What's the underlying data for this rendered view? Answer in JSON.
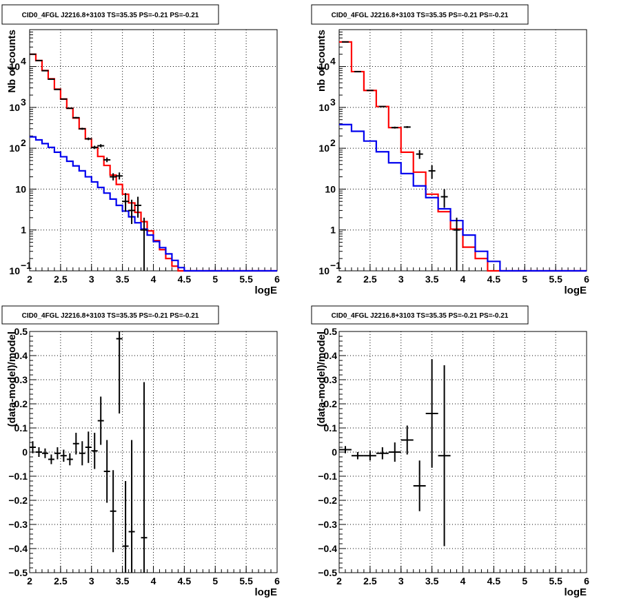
{
  "chart_data": [
    {
      "type": "line",
      "title": "CID0_4FGL J2216.8+3103 TS=35.35 PS=-0.21 PS=-0.21",
      "xlabel": "logE",
      "ylabel": "Nb of counts",
      "xlim": [
        2,
        6
      ],
      "ylim": [
        0.1,
        80000
      ],
      "yscale": "log",
      "grid": true,
      "x_ticks": [
        "2",
        "2.5",
        "3",
        "3.5",
        "4",
        "4.5",
        "5",
        "5.5",
        "6"
      ],
      "y_ticks": [
        {
          "value": 0.1,
          "base": "10",
          "exp": "−1"
        },
        {
          "value": 1,
          "base": "1",
          "exp": ""
        },
        {
          "value": 10,
          "base": "10",
          "exp": ""
        },
        {
          "value": 100,
          "base": "10",
          "exp": "2"
        },
        {
          "value": 1000,
          "base": "10",
          "exp": "3"
        },
        {
          "value": 10000,
          "base": "10",
          "exp": "4"
        }
      ],
      "bin_edges": [
        2.0,
        2.1,
        2.2,
        2.3,
        2.4,
        2.5,
        2.6,
        2.7,
        2.8,
        2.9,
        3.0,
        3.1,
        3.2,
        3.3,
        3.4,
        3.5,
        3.6,
        3.7,
        3.8,
        3.9,
        4.0,
        4.1,
        4.2,
        4.3,
        4.4,
        4.5,
        4.6,
        4.7,
        4.8,
        4.9,
        5.0,
        5.1,
        5.2,
        5.3,
        5.4,
        5.5,
        5.6,
        5.7,
        5.8,
        5.9,
        6.0
      ],
      "series": [
        {
          "color": "#ff0000",
          "values": [
            20000,
            14000,
            8000,
            5000,
            2800,
            1600,
            950,
            550,
            300,
            170,
            105,
            63,
            38,
            22,
            13,
            7.5,
            4.6,
            2.7,
            1.6,
            0.95,
            0.55,
            0.33,
            0.2,
            0.13,
            0.1,
            0.1,
            0.1,
            0.1,
            0.1,
            0.1,
            0.1,
            0.1,
            0.1,
            0.1,
            0.1,
            0.1,
            0.1,
            0.1,
            0.1,
            0.1
          ]
        },
        {
          "color": "#0000ee",
          "values": [
            190,
            160,
            130,
            105,
            80,
            62,
            48,
            37,
            28,
            20,
            15,
            11,
            8,
            5.7,
            4,
            2.9,
            2.1,
            1.5,
            1.05,
            0.75,
            0.52,
            0.37,
            0.26,
            0.18,
            0.12,
            0.1,
            0.1,
            0.1,
            0.1,
            0.1,
            0.1,
            0.1,
            0.1,
            0.1,
            0.1,
            0.1,
            0.1,
            0.1,
            0.1,
            0.1
          ]
        }
      ],
      "data_points": [
        {
          "x": 2.05,
          "y": 20000
        },
        {
          "x": 2.15,
          "y": 14000
        },
        {
          "x": 2.25,
          "y": 7900
        },
        {
          "x": 2.35,
          "y": 4900
        },
        {
          "x": 2.45,
          "y": 2750
        },
        {
          "x": 2.55,
          "y": 1600
        },
        {
          "x": 2.65,
          "y": 950
        },
        {
          "x": 2.75,
          "y": 560
        },
        {
          "x": 2.85,
          "y": 300
        },
        {
          "x": 2.95,
          "y": 170
        },
        {
          "x": 3.05,
          "y": 105
        },
        {
          "x": 3.15,
          "y": 115
        },
        {
          "x": 3.25,
          "y": 52
        },
        {
          "x": 3.35,
          "y": 20
        },
        {
          "x": 3.45,
          "y": 21
        },
        {
          "x": 3.55,
          "y": 5,
          "lo": 2.8,
          "hi": 8
        },
        {
          "x": 3.65,
          "y": 3,
          "lo": 1.4,
          "hi": 5.5
        },
        {
          "x": 3.75,
          "y": 4,
          "lo": 2,
          "hi": 6.5
        },
        {
          "x": 3.85,
          "y": 1,
          "lo": 0.1,
          "hi": 2
        }
      ]
    },
    {
      "type": "line",
      "title": "CID0_4FGL J2216.8+3103 TS=35.35 PS=-0.21 PS=-0.21",
      "xlabel": "logE",
      "ylabel": "nb of counts",
      "xlim": [
        2,
        6
      ],
      "ylim": [
        0.1,
        80000
      ],
      "yscale": "log",
      "grid": true,
      "x_ticks": [
        "2",
        "2.5",
        "3",
        "3.5",
        "4",
        "4.5",
        "5",
        "5.5",
        "6"
      ],
      "y_ticks": [
        {
          "value": 0.1,
          "base": "10",
          "exp": "−1"
        },
        {
          "value": 1,
          "base": "1",
          "exp": ""
        },
        {
          "value": 10,
          "base": "10",
          "exp": ""
        },
        {
          "value": 100,
          "base": "10",
          "exp": "2"
        },
        {
          "value": 1000,
          "base": "10",
          "exp": "3"
        },
        {
          "value": 10000,
          "base": "10",
          "exp": "4"
        }
      ],
      "bin_edges": [
        2.0,
        2.2,
        2.4,
        2.6,
        2.8,
        3.0,
        3.2,
        3.4,
        3.6,
        3.8,
        4.0,
        4.2,
        4.4,
        4.6,
        4.8,
        5.0,
        5.2,
        5.4,
        5.6,
        5.8,
        6.0
      ],
      "series": [
        {
          "color": "#ff0000",
          "values": [
            40000,
            7500,
            2600,
            1050,
            320,
            80,
            26,
            7.5,
            2.8,
            1.05,
            0.38,
            0.2,
            0.1,
            0.1,
            0.1,
            0.1,
            0.1,
            0.1,
            0.1,
            0.1
          ]
        },
        {
          "color": "#0000ee",
          "values": [
            380,
            260,
            150,
            82,
            44,
            24,
            12,
            6.2,
            3.3,
            1.7,
            0.75,
            0.3,
            0.17,
            0.1,
            0.1,
            0.1,
            0.1,
            0.1,
            0.1,
            0.1
          ]
        }
      ],
      "data_points": [
        {
          "x": 2.1,
          "y": 40000
        },
        {
          "x": 2.3,
          "y": 7500
        },
        {
          "x": 2.5,
          "y": 2600
        },
        {
          "x": 2.7,
          "y": 1050
        },
        {
          "x": 2.9,
          "y": 320
        },
        {
          "x": 3.1,
          "y": 330
        },
        {
          "x": 3.3,
          "y": 72,
          "lo": 55,
          "hi": 90
        },
        {
          "x": 3.5,
          "y": 28,
          "lo": 18,
          "hi": 38
        },
        {
          "x": 3.7,
          "y": 6.5,
          "lo": 3.5,
          "hi": 10
        },
        {
          "x": 3.9,
          "y": 1,
          "lo": 0.1,
          "hi": 2
        }
      ]
    },
    {
      "type": "scatter",
      "title": "CID0_4FGL J2216.8+3103 TS=35.35 PS=-0.21 PS=-0.21",
      "xlabel": "logE",
      "ylabel": "(data-model)/model",
      "xlim": [
        2,
        6
      ],
      "ylim": [
        -0.5,
        0.5
      ],
      "grid": true,
      "x_ticks": [
        "2",
        "2.5",
        "3",
        "3.5",
        "4",
        "4.5",
        "5",
        "5.5",
        "6"
      ],
      "y_ticks": [
        "−0.5",
        "−0.4",
        "−0.3",
        "−0.2",
        "−0.1",
        "0",
        "0.1",
        "0.2",
        "0.3",
        "0.4",
        "0.5"
      ],
      "points": [
        {
          "x": 2.05,
          "y": 0.02,
          "err": 0.025,
          "xerr": 0.05
        },
        {
          "x": 2.15,
          "y": 0.0,
          "err": 0.02,
          "xerr": 0.05
        },
        {
          "x": 2.25,
          "y": -0.005,
          "err": 0.02,
          "xerr": 0.05
        },
        {
          "x": 2.35,
          "y": -0.03,
          "err": 0.02,
          "xerr": 0.05
        },
        {
          "x": 2.45,
          "y": -0.005,
          "err": 0.025,
          "xerr": 0.05
        },
        {
          "x": 2.55,
          "y": -0.015,
          "err": 0.025,
          "xerr": 0.05
        },
        {
          "x": 2.65,
          "y": -0.03,
          "err": 0.025,
          "xerr": 0.05
        },
        {
          "x": 2.75,
          "y": 0.035,
          "err": 0.045,
          "xerr": 0.05
        },
        {
          "x": 2.85,
          "y": -0.005,
          "err": 0.05,
          "xerr": 0.05
        },
        {
          "x": 2.95,
          "y": 0.02,
          "err": 0.065,
          "xerr": 0.05
        },
        {
          "x": 3.05,
          "y": 0.005,
          "err": 0.075,
          "xerr": 0.05
        },
        {
          "x": 3.15,
          "y": 0.13,
          "err": 0.1,
          "xerr": 0.05
        },
        {
          "x": 3.25,
          "y": -0.08,
          "err": 0.13,
          "xerr": 0.05
        },
        {
          "x": 3.35,
          "y": -0.245,
          "err": 0.17,
          "xerr": 0.05
        },
        {
          "x": 3.45,
          "y": 0.47,
          "err": 0.31,
          "xerr": 0.05
        },
        {
          "x": 3.55,
          "y": -0.39,
          "err": 0.27,
          "xerr": 0.05
        },
        {
          "x": 3.65,
          "y": -0.33,
          "err": 0.38,
          "xerr": 0.05
        },
        {
          "x": 3.85,
          "y": -0.355,
          "err": 0.645,
          "xerr": 0.05
        }
      ]
    },
    {
      "type": "scatter",
      "title": "CID0_4FGL J2216.8+3103 TS=35.35 PS=-0.21 PS=-0.21",
      "xlabel": "logE",
      "ylabel": "(data-model)/model",
      "xlim": [
        2,
        6
      ],
      "ylim": [
        -0.5,
        0.5
      ],
      "grid": true,
      "x_ticks": [
        "2",
        "2.5",
        "3",
        "3.5",
        "4",
        "4.5",
        "5",
        "5.5",
        "6"
      ],
      "y_ticks": [
        "−0.5",
        "−0.4",
        "−0.3",
        "−0.2",
        "−0.1",
        "0",
        "0.1",
        "0.2",
        "0.3",
        "0.4",
        "0.5"
      ],
      "points": [
        {
          "x": 2.1,
          "y": 0.01,
          "err": 0.015,
          "xerr": 0.1
        },
        {
          "x": 2.3,
          "y": -0.015,
          "err": 0.015,
          "xerr": 0.1
        },
        {
          "x": 2.5,
          "y": -0.015,
          "err": 0.02,
          "xerr": 0.1
        },
        {
          "x": 2.7,
          "y": -0.005,
          "err": 0.025,
          "xerr": 0.1
        },
        {
          "x": 2.9,
          "y": 0.0,
          "err": 0.04,
          "xerr": 0.1
        },
        {
          "x": 3.1,
          "y": 0.05,
          "err": 0.06,
          "xerr": 0.1
        },
        {
          "x": 3.3,
          "y": -0.14,
          "err": 0.105,
          "xerr": 0.1
        },
        {
          "x": 3.5,
          "y": 0.16,
          "err": 0.225,
          "xerr": 0.1
        },
        {
          "x": 3.7,
          "y": -0.015,
          "err": 0.375,
          "xerr": 0.1
        }
      ]
    }
  ]
}
